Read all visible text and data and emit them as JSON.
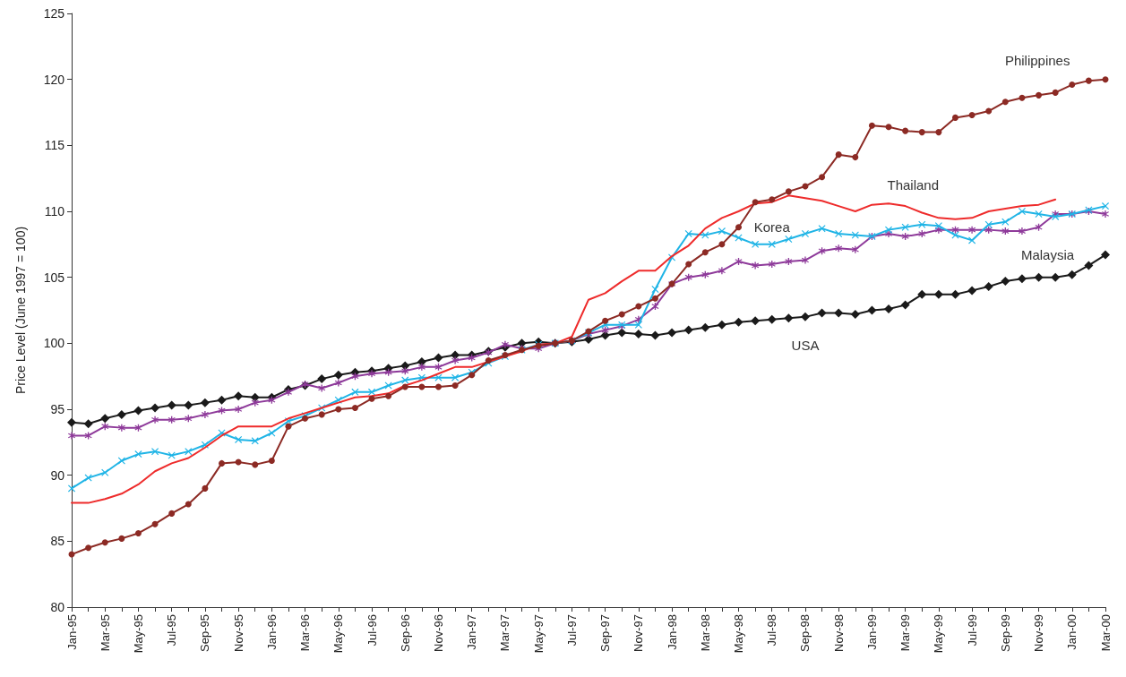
{
  "chart_data": {
    "type": "line",
    "ylabel": "Price Level (June 1997 = 100)",
    "categories": [
      "Jan-95",
      null,
      "Mar-95",
      null,
      "May-95",
      null,
      "Jul-95",
      null,
      "Sep-95",
      null,
      "Nov-95",
      null,
      "Jan-96",
      null,
      "Mar-96",
      null,
      "May-96",
      null,
      "Jul-96",
      null,
      "Sep-96",
      null,
      "Nov-96",
      null,
      "Jan-97",
      null,
      "Mar-97",
      null,
      "May-97",
      null,
      "Jul-97",
      null,
      "Sep-97",
      null,
      "Nov-97",
      null,
      "Jan-98",
      null,
      "Mar-98",
      null,
      "May-98",
      null,
      "Jul-98",
      null,
      "Sep-98",
      null,
      "Nov-98",
      null,
      "Jan-99",
      null,
      "Mar-99",
      null,
      "May-99",
      null,
      "Jul-99",
      null,
      "Sep-99",
      null,
      "Nov-99",
      null,
      "Jan-00",
      null,
      "Mar-00"
    ],
    "series": [
      {
        "name": "Philippines",
        "color": "#8c2a24",
        "marker": "circle",
        "values": [
          84.0,
          84.5,
          84.9,
          85.2,
          85.6,
          86.3,
          87.1,
          87.8,
          89.0,
          90.9,
          91.0,
          90.8,
          91.1,
          93.7,
          94.3,
          94.6,
          95.0,
          95.1,
          95.8,
          96.0,
          96.7,
          96.7,
          96.7,
          96.8,
          97.6,
          98.7,
          99.1,
          99.5,
          99.8,
          100.0,
          100.2,
          100.9,
          101.7,
          102.2,
          102.8,
          103.4,
          104.5,
          106.0,
          106.9,
          107.5,
          108.8,
          110.7,
          110.9,
          111.5,
          111.9,
          112.6,
          114.3,
          114.1,
          116.5,
          116.4,
          116.1,
          116.0,
          116.0,
          117.1,
          117.3,
          117.6,
          118.3,
          118.6,
          118.8,
          119.0,
          119.6,
          119.9,
          120.0
        ]
      },
      {
        "name": "Thailand",
        "color": "#ee2b2b",
        "marker": "none",
        "values": [
          87.9,
          87.9,
          88.2,
          88.6,
          89.3,
          90.3,
          90.9,
          91.3,
          92.1,
          93.0,
          93.7,
          93.7,
          93.7,
          94.3,
          94.7,
          95.1,
          95.5,
          95.9,
          96.0,
          96.2,
          96.8,
          97.2,
          97.7,
          98.2,
          98.2,
          98.6,
          99.0,
          99.4,
          99.9,
          100.0,
          100.5,
          103.3,
          103.8,
          104.7,
          105.5,
          105.5,
          106.6,
          107.4,
          108.7,
          109.5,
          110.0,
          110.6,
          110.7,
          111.2,
          111.0,
          110.8,
          110.4,
          110.0,
          110.5,
          110.6,
          110.4,
          109.9,
          109.5,
          109.4,
          109.5,
          110.0,
          110.2,
          110.4,
          110.5,
          110.9,
          null,
          null,
          null
        ]
      },
      {
        "name": "Korea",
        "color": "#1fb4e6",
        "marker": "cross",
        "values": [
          89.0,
          89.8,
          90.2,
          91.1,
          91.6,
          91.8,
          91.5,
          91.8,
          92.3,
          93.2,
          92.7,
          92.6,
          93.2,
          94.1,
          94.5,
          95.1,
          95.7,
          96.3,
          96.3,
          96.8,
          97.2,
          97.4,
          97.4,
          97.4,
          97.8,
          98.5,
          99.0,
          99.5,
          99.9,
          100.0,
          100.2,
          100.8,
          101.4,
          101.4,
          101.4,
          104.1,
          106.5,
          108.3,
          108.2,
          108.5,
          108.0,
          107.5,
          107.5,
          107.9,
          108.3,
          108.7,
          108.3,
          108.2,
          108.1,
          108.6,
          108.8,
          109.0,
          108.9,
          108.2,
          107.8,
          109.0,
          109.2,
          110.0,
          109.8,
          109.6,
          109.8,
          110.1,
          110.4
        ]
      },
      {
        "name": "Malaysia",
        "color": "#8e3a9a",
        "marker": "star",
        "values": [
          93.0,
          93.0,
          93.7,
          93.6,
          93.6,
          94.2,
          94.2,
          94.3,
          94.6,
          94.9,
          95.0,
          95.5,
          95.7,
          96.3,
          96.9,
          96.6,
          97.0,
          97.5,
          97.7,
          97.8,
          97.9,
          98.2,
          98.2,
          98.7,
          98.9,
          99.3,
          99.9,
          99.6,
          99.6,
          100.0,
          100.2,
          100.7,
          101.0,
          101.3,
          101.8,
          102.8,
          104.5,
          105.0,
          105.2,
          105.5,
          106.2,
          105.9,
          106.0,
          106.2,
          106.3,
          107.0,
          107.2,
          107.1,
          108.1,
          108.3,
          108.1,
          108.3,
          108.6,
          108.6,
          108.6,
          108.6,
          108.5,
          108.5,
          108.8,
          109.8,
          109.8,
          110.0,
          109.8
        ]
      },
      {
        "name": "USA",
        "color": "#1a1a1a",
        "marker": "diamond",
        "values": [
          94.0,
          93.9,
          94.3,
          94.6,
          94.9,
          95.1,
          95.3,
          95.3,
          95.5,
          95.7,
          96.0,
          95.9,
          95.9,
          96.5,
          96.8,
          97.3,
          97.6,
          97.8,
          97.9,
          98.1,
          98.3,
          98.6,
          98.9,
          99.1,
          99.1,
          99.4,
          99.7,
          100.0,
          100.1,
          100.0,
          100.1,
          100.3,
          100.6,
          100.8,
          100.7,
          100.6,
          100.8,
          101.0,
          101.2,
          101.4,
          101.6,
          101.7,
          101.8,
          101.9,
          102.0,
          102.3,
          102.3,
          102.2,
          102.5,
          102.6,
          102.9,
          103.7,
          103.7,
          103.7,
          104.0,
          104.3,
          104.7,
          104.9,
          105.0,
          105.0,
          105.2,
          105.9,
          106.7
        ]
      }
    ],
    "ylim": [
      80,
      125
    ],
    "yticks": [
      80,
      85,
      90,
      95,
      100,
      105,
      110,
      115,
      120,
      125
    ],
    "grid": false,
    "legend": false
  }
}
